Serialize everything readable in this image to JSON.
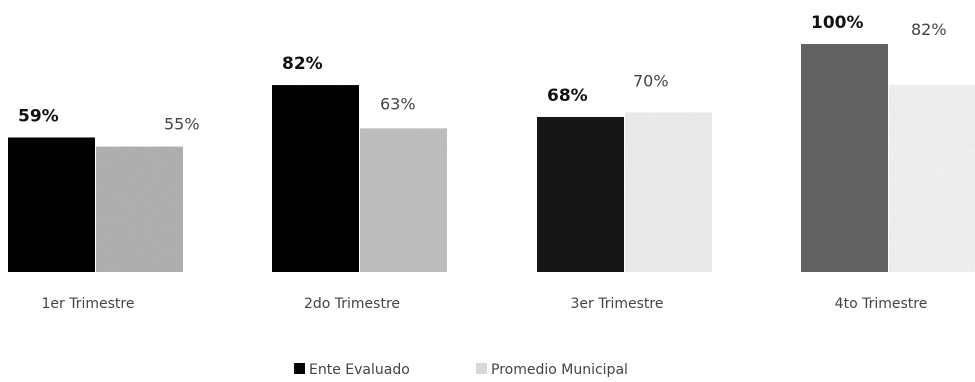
{
  "chart_data": {
    "type": "bar",
    "categories": [
      "1er Trimestre",
      "2do Trimestre",
      "3er Trimestre",
      "4to Trimestre"
    ],
    "series": [
      {
        "name": "Ente Evaluado",
        "values": [
          59,
          82,
          68,
          100
        ],
        "labels": [
          "59%",
          "82%",
          "68%",
          "100%"
        ],
        "colors": [
          "#050505",
          "#050505",
          "#151515",
          "#666666"
        ]
      },
      {
        "name": "Promedio Municipal",
        "values": [
          55,
          63,
          70,
          82
        ],
        "labels": [
          "55%",
          "63%",
          "70%",
          "82%"
        ],
        "colors": [
          "#b5b5b5",
          "#c4c4c4",
          "#f2f2f2",
          "#f7f7f7"
        ]
      }
    ],
    "ylim": [
      0,
      100
    ],
    "legend_position": "bottom-center",
    "grid": false
  }
}
